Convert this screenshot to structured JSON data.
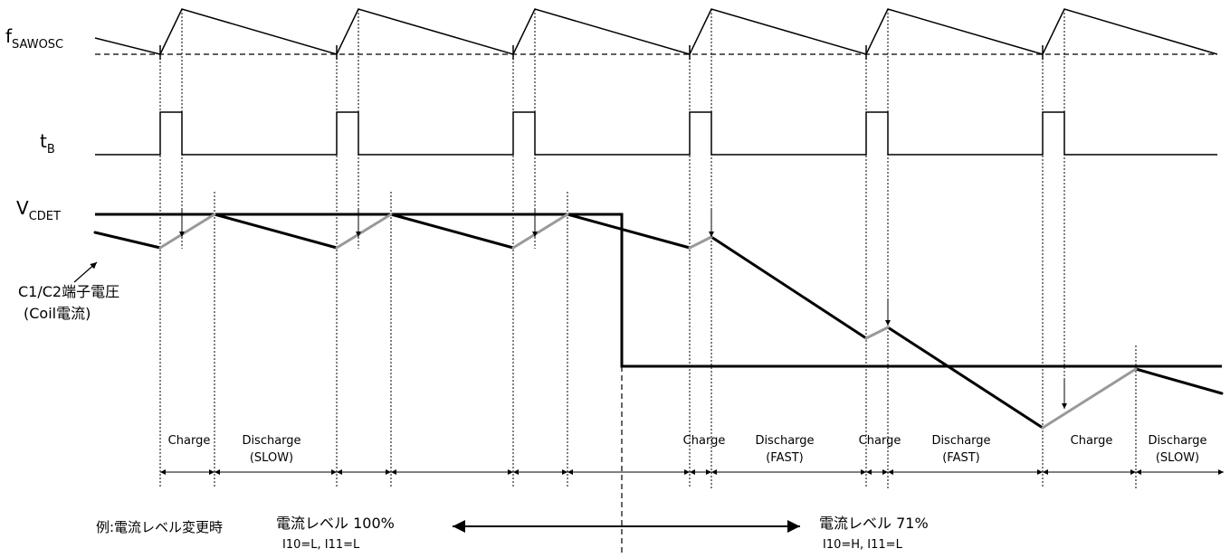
{
  "signals": {
    "fsawosc": {
      "main": "f",
      "sub": "SAWOSC"
    },
    "tb": {
      "main": "t",
      "sub": "B"
    },
    "vcdet": {
      "main": "V",
      "sub": "CDET"
    }
  },
  "coil_label": {
    "line1": "C1/C2端子電圧",
    "line2": "(Coil電流)"
  },
  "phases": [
    {
      "line1": "Charge",
      "line2": ""
    },
    {
      "line1": "Discharge",
      "line2": "(SLOW)"
    },
    {
      "line1": "Charge",
      "line2": ""
    },
    {
      "line1": "Discharge",
      "line2": "(FAST)"
    },
    {
      "line1": "Charge",
      "line2": ""
    },
    {
      "line1": "Discharge",
      "line2": "(FAST)"
    },
    {
      "line1": "Charge",
      "line2": ""
    },
    {
      "line1": "Discharge",
      "line2": "(SLOW)"
    }
  ],
  "example_label": "例:電流レベル変更時",
  "level_before": {
    "title": "電流レベル 100%",
    "setting": "I10=L, I11=L"
  },
  "level_after": {
    "title": "電流レベル 71%",
    "setting": "I10=H, I11=L"
  },
  "colors": {
    "line": "#000000",
    "charge": "#999999",
    "background": "#ffffff"
  }
}
